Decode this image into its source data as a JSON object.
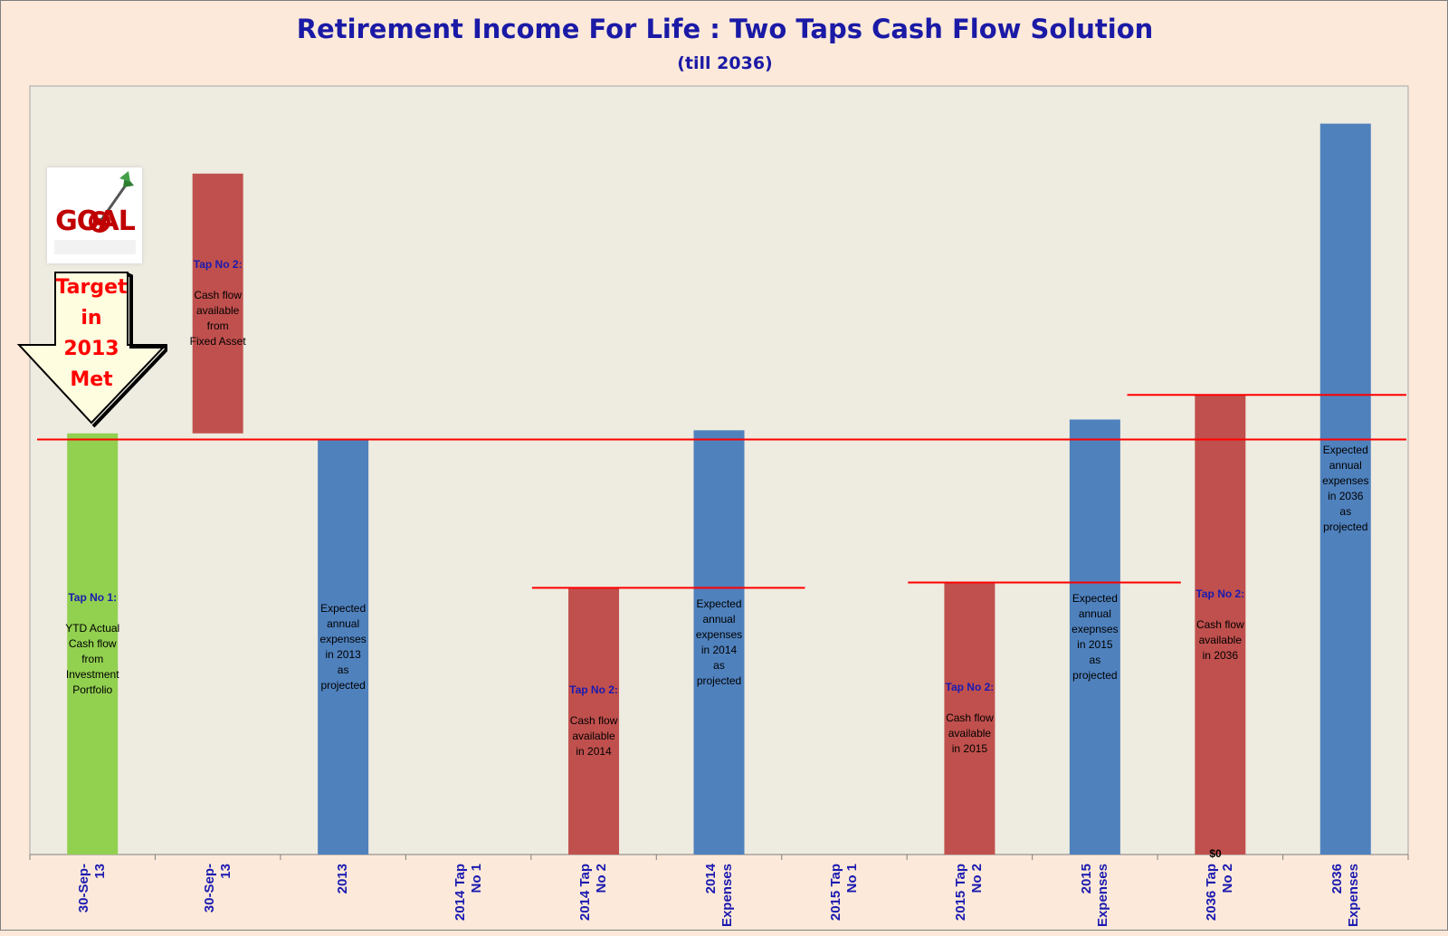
{
  "title": "Retirement Income For Life : Two Taps Cash Flow Solution",
  "subtitle": "(till 2036)",
  "colors": {
    "green": "#92d050",
    "red": "#c0504d",
    "blue": "#4f81bd",
    "line": "#ff0000",
    "plot_bg": "#eeebe0",
    "page_bg": "#fde9d9"
  },
  "goal_badge": {
    "text": "GOAL",
    "icon": "goal-target-arrow-icon"
  },
  "callout": {
    "text": "Target\nin\n2013\nMet",
    "icon": "down-arrow-callout-icon"
  },
  "chart_data": {
    "type": "bar",
    "categories": [
      "30-Sep-\n13",
      "30-Sep-\n13",
      "2013",
      "2014 Tap\nNo 1",
      "2014 Tap\nNo 2",
      "2014\nExpenses",
      "2015 Tap\nNo 1",
      "2015 Tap\nNo 2",
      "2015\nExpenses",
      "2036 Tap\nNo 2",
      "2036\nExpenses"
    ],
    "y_tick_label": "$0",
    "ylim": [
      0,
      100
    ],
    "bars": [
      {
        "index": 0,
        "low": 0,
        "high": 54.8,
        "color": "green",
        "tap": "Tap No 1:",
        "desc": "YTD Actual\nCash flow\nfrom\nInvestment\nPortfolio"
      },
      {
        "index": 1,
        "low": 54.8,
        "high": 88.6,
        "color": "red",
        "tap": "Tap No 2:",
        "desc": "Cash flow\navailable\nfrom\nFixed Asset"
      },
      {
        "index": 2,
        "low": 0,
        "high": 54.0,
        "color": "blue",
        "tap": "",
        "desc": "Expected\nannual\nexpenses\nin 2013\nas\nprojected"
      },
      {
        "index": 4,
        "low": 0,
        "high": 34.7,
        "color": "red",
        "tap": "Tap No 2:",
        "desc": "Cash flow\navailable\nin 2014"
      },
      {
        "index": 5,
        "low": 0,
        "high": 55.2,
        "color": "blue",
        "tap": "",
        "desc": "Expected\nannual\nexpenses\nin 2014\nas\nprojected"
      },
      {
        "index": 7,
        "low": 0,
        "high": 35.4,
        "color": "red",
        "tap": "Tap No 2:",
        "desc": "Cash flow\navailable\nin 2015"
      },
      {
        "index": 8,
        "low": 0,
        "high": 56.6,
        "color": "blue",
        "tap": "",
        "desc": "Expected\nannual\nexepnses\nin 2015\nas\nprojected"
      },
      {
        "index": 9,
        "low": 0,
        "high": 59.8,
        "color": "red",
        "tap": "Tap No 2:",
        "desc": "Cash flow\navailable\nin 2036"
      },
      {
        "index": 10,
        "low": 0,
        "high": 95.1,
        "color": "blue",
        "tap": "",
        "desc": "Expected\nannual\nexpenses\nin 2036\nas\nprojected"
      }
    ],
    "reference_lines": [
      {
        "from": 0,
        "to": 11,
        "y": 54.0
      },
      {
        "from": 3.95,
        "to": 6.2,
        "y": 34.7
      },
      {
        "from": 6.95,
        "to": 9.2,
        "y": 35.4
      },
      {
        "from": 8.7,
        "to": 11,
        "y": 59.8
      }
    ],
    "grid": false,
    "legend": "none"
  }
}
